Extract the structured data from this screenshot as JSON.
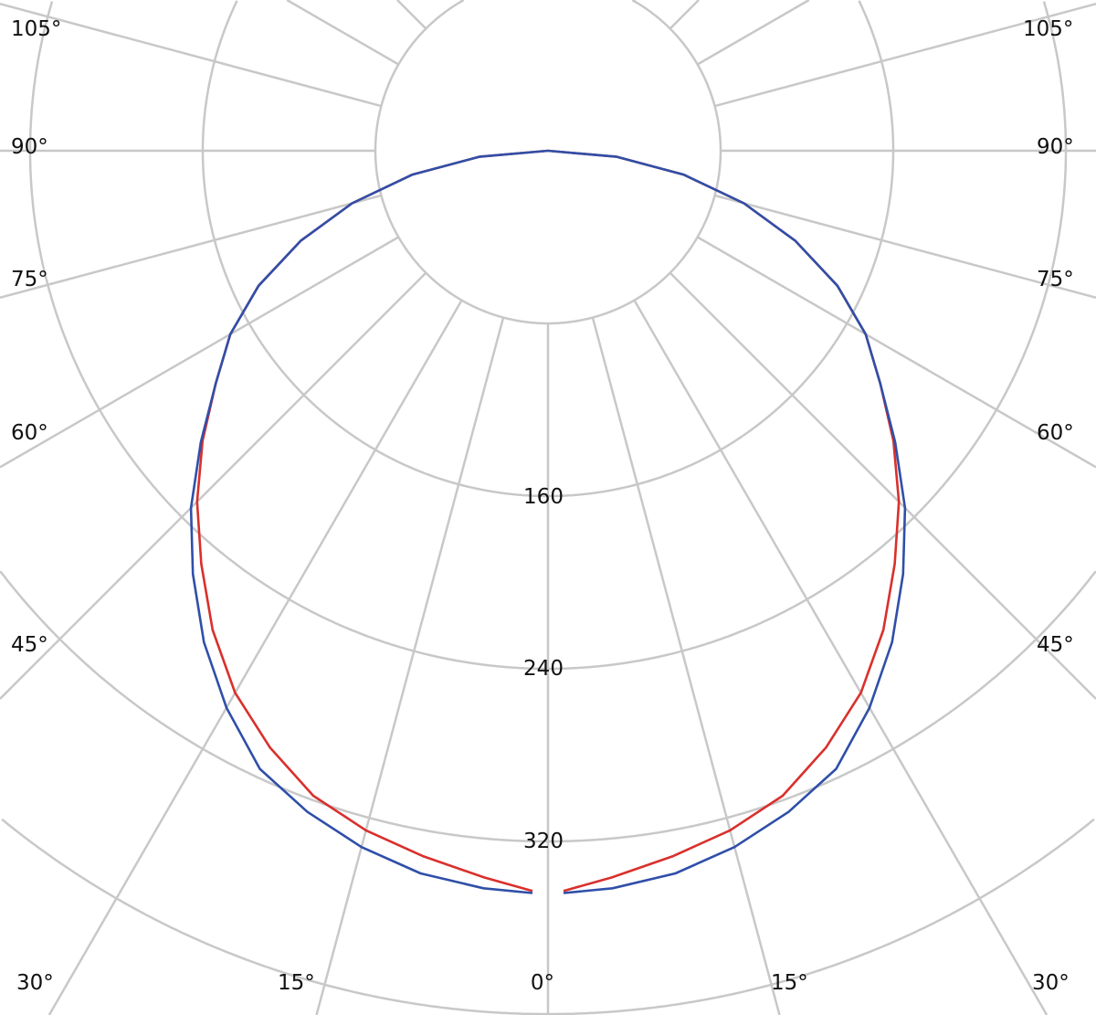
{
  "chart_data": {
    "type": "line",
    "subtype": "polar",
    "orientation": "0° pointing down, angles increase toward both sides",
    "radial_ticks": [
      80,
      160,
      240,
      320,
      400,
      480,
      560,
      640
    ],
    "radial_tick_labels": [
      "160",
      "240",
      "320"
    ],
    "angle_labels_left": [
      "105°",
      "90°",
      "75°",
      "60°",
      "45°",
      "30°",
      "15°"
    ],
    "angle_labels_right": [
      "105°",
      "90°",
      "75°",
      "60°",
      "45°",
      "30°",
      "15°"
    ],
    "center_angle_label": "0°",
    "grid": true,
    "angles": [
      0,
      5,
      10,
      15,
      20,
      25,
      30,
      35,
      40,
      45,
      50,
      55,
      60,
      65,
      70,
      75,
      80,
      85,
      90
    ],
    "series": [
      {
        "color": "#d9302c",
        "values": [
          343,
          338,
          332,
          326,
          318,
          305,
          290,
          271,
          250,
          230,
          209,
          188,
          170,
          148,
          122,
          94,
          64,
          32,
          0
        ]
      },
      {
        "color": "#2f4fa8",
        "values": [
          344,
          343,
          340,
          334,
          326,
          316,
          298,
          278,
          256,
          234,
          210,
          188,
          170,
          148,
          122,
          94,
          64,
          32,
          0
        ]
      }
    ],
    "colors": {
      "grid": "#c8c8c8"
    }
  }
}
